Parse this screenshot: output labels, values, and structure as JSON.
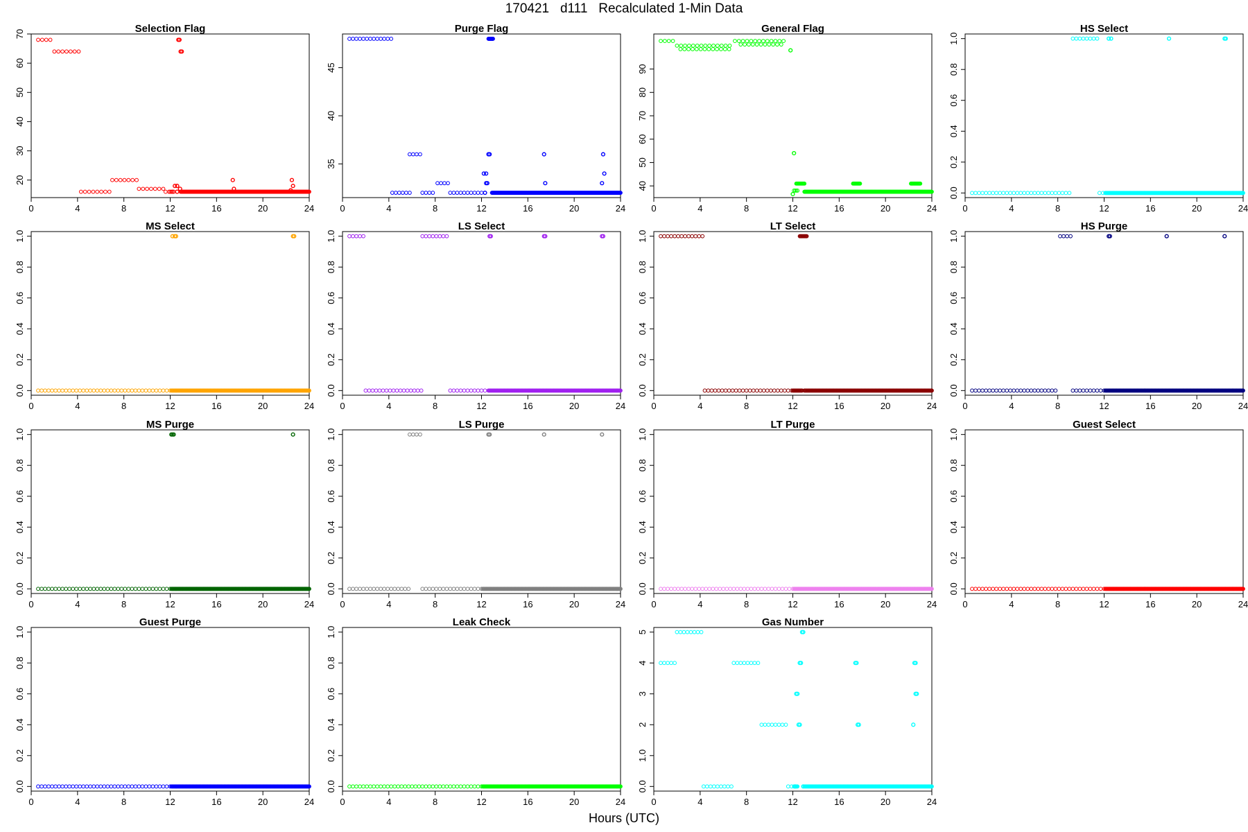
{
  "figure": {
    "title": "170421   d111   Recalculated 1-Min Data",
    "xlabel": "Hours (UTC)"
  },
  "chart_data": [
    {
      "type": "scatter",
      "title": "Selection Flag",
      "color": "#ff0000",
      "xlim": [
        0,
        24
      ],
      "ylim": [
        14,
        70
      ],
      "x_ticks": [
        0,
        4,
        8,
        12,
        16,
        20,
        24
      ],
      "y_ticks": [
        20,
        30,
        40,
        50,
        60,
        70
      ],
      "segments": [
        [
          0.6,
          1.9,
          68,
          0.35
        ],
        [
          2.0,
          4.2,
          64,
          0.35
        ],
        [
          4.3,
          6.8,
          16,
          0.35
        ],
        [
          7.0,
          9.2,
          20,
          0.35
        ],
        [
          9.3,
          11.5,
          17,
          0.35
        ],
        [
          11.6,
          12.2,
          16,
          0.3
        ],
        [
          12.0,
          12.3,
          16,
          0.1
        ],
        [
          12.9,
          24,
          16,
          0.05
        ]
      ],
      "points": [
        [
          12.4,
          18
        ],
        [
          12.6,
          18
        ],
        [
          12.7,
          68
        ],
        [
          12.8,
          68
        ],
        [
          12.85,
          17
        ],
        [
          12.9,
          64
        ],
        [
          13.0,
          64
        ],
        [
          12.6,
          16
        ],
        [
          17.4,
          20
        ],
        [
          17.5,
          17
        ],
        [
          22.5,
          20
        ],
        [
          22.6,
          18
        ],
        [
          22.4,
          16.5
        ]
      ]
    },
    {
      "type": "scatter",
      "title": "Purge Flag",
      "color": "#0000ff",
      "xlim": [
        0,
        24
      ],
      "ylim": [
        31.5,
        48.5
      ],
      "x_ticks": [
        0,
        4,
        8,
        12,
        16,
        20,
        24
      ],
      "y_ticks": [
        35,
        40,
        45
      ],
      "segments": [
        [
          0.6,
          4.3,
          48,
          0.3
        ],
        [
          4.3,
          5.8,
          32,
          0.3
        ],
        [
          5.8,
          6.8,
          36,
          0.3
        ],
        [
          6.9,
          8.0,
          32,
          0.3
        ],
        [
          8.2,
          9.2,
          33,
          0.3
        ],
        [
          9.3,
          12.5,
          32,
          0.3
        ],
        [
          12.9,
          24,
          32,
          0.05
        ],
        [
          12.6,
          13.0,
          48,
          0.03
        ]
      ],
      "points": [
        [
          12.2,
          34
        ],
        [
          12.4,
          34
        ],
        [
          12.4,
          33
        ],
        [
          12.5,
          33
        ],
        [
          12.6,
          36
        ],
        [
          12.7,
          36
        ],
        [
          12.3,
          32
        ],
        [
          17.4,
          36
        ],
        [
          17.5,
          33
        ],
        [
          22.4,
          33
        ],
        [
          22.5,
          36
        ],
        [
          22.6,
          34
        ]
      ]
    },
    {
      "type": "scatter",
      "title": "General Flag",
      "color": "#00ff00",
      "xlim": [
        0,
        24
      ],
      "ylim": [
        35,
        105
      ],
      "x_ticks": [
        0,
        4,
        8,
        12,
        16,
        20,
        24
      ],
      "y_ticks": [
        40,
        50,
        60,
        70,
        80,
        90
      ],
      "segments": [
        [
          0.6,
          1.8,
          102,
          0.35
        ],
        [
          2.0,
          6.8,
          100,
          0.35
        ],
        [
          2.3,
          6.5,
          98.5,
          0.35
        ],
        [
          7.0,
          11.5,
          102,
          0.35
        ],
        [
          7.5,
          11.0,
          100.5,
          0.35
        ],
        [
          12.3,
          13.0,
          41,
          0.05
        ],
        [
          13.0,
          24,
          37.5,
          0.05
        ],
        [
          17.2,
          17.8,
          41,
          0.05
        ],
        [
          22.2,
          23.0,
          41,
          0.05
        ],
        [
          12.1,
          12.4,
          38,
          0.1
        ]
      ],
      "points": [
        [
          11.8,
          98
        ],
        [
          12.1,
          54
        ],
        [
          12.0,
          36.5
        ]
      ]
    },
    {
      "type": "scatter",
      "title": "HS Select",
      "color": "#00ffff",
      "xlim": [
        0,
        24
      ],
      "ylim": [
        -0.03,
        1.03
      ],
      "x_ticks": [
        0,
        4,
        8,
        12,
        16,
        20,
        24
      ],
      "y_ticks": [
        0,
        0.2,
        0.4,
        0.6,
        0.8,
        1.0
      ],
      "segments": [
        [
          0.6,
          9.2,
          0,
          0.3
        ],
        [
          9.3,
          11.5,
          1,
          0.3
        ],
        [
          11.6,
          12.0,
          0,
          0.3
        ],
        [
          12.1,
          24,
          0,
          0.05
        ]
      ],
      "points": [
        [
          12.4,
          1
        ],
        [
          12.6,
          1
        ],
        [
          17.6,
          1
        ],
        [
          22.4,
          1
        ],
        [
          22.5,
          1
        ]
      ]
    },
    {
      "type": "scatter",
      "title": "MS Select",
      "color": "#ffa500",
      "xlim": [
        0,
        24
      ],
      "ylim": [
        -0.03,
        1.03
      ],
      "x_ticks": [
        0,
        4,
        8,
        12,
        16,
        20,
        24
      ],
      "y_ticks": [
        0,
        0.2,
        0.4,
        0.6,
        0.8,
        1.0
      ],
      "segments": [
        [
          0.6,
          12.0,
          0,
          0.3
        ],
        [
          12.1,
          24,
          0,
          0.05
        ]
      ],
      "points": [
        [
          12.2,
          1
        ],
        [
          12.4,
          1
        ],
        [
          12.5,
          1
        ],
        [
          22.6,
          1
        ],
        [
          22.7,
          1
        ]
      ]
    },
    {
      "type": "scatter",
      "title": "LS Select",
      "color": "#a020f0",
      "xlim": [
        0,
        24
      ],
      "ylim": [
        -0.03,
        1.03
      ],
      "x_ticks": [
        0,
        4,
        8,
        12,
        16,
        20,
        24
      ],
      "y_ticks": [
        0,
        0.2,
        0.4,
        0.6,
        0.8,
        1.0
      ],
      "segments": [
        [
          0.6,
          1.8,
          1,
          0.3
        ],
        [
          2.0,
          6.8,
          0,
          0.3
        ],
        [
          6.9,
          9.2,
          1,
          0.3
        ],
        [
          9.3,
          12.5,
          0,
          0.3
        ],
        [
          12.6,
          24,
          0,
          0.05
        ]
      ],
      "points": [
        [
          12.7,
          1
        ],
        [
          12.8,
          1
        ],
        [
          17.4,
          1
        ],
        [
          17.5,
          1
        ],
        [
          22.4,
          1
        ],
        [
          22.5,
          1
        ]
      ]
    },
    {
      "type": "scatter",
      "title": "LT Select",
      "color": "#8b0000",
      "xlim": [
        0,
        24
      ],
      "ylim": [
        -0.03,
        1.03
      ],
      "x_ticks": [
        0,
        4,
        8,
        12,
        16,
        20,
        24
      ],
      "y_ticks": [
        0,
        0.2,
        0.4,
        0.6,
        0.8,
        1.0
      ],
      "segments": [
        [
          0.6,
          4.3,
          1,
          0.3
        ],
        [
          4.4,
          11.9,
          0,
          0.3
        ],
        [
          12.0,
          12.8,
          0,
          0.05
        ],
        [
          13.0,
          24,
          0,
          0.05
        ],
        [
          12.6,
          13.2,
          1,
          0.05
        ]
      ],
      "points": []
    },
    {
      "type": "scatter",
      "title": "HS Purge",
      "color": "#000080",
      "xlim": [
        0,
        24
      ],
      "ylim": [
        -0.03,
        1.03
      ],
      "x_ticks": [
        0,
        4,
        8,
        12,
        16,
        20,
        24
      ],
      "y_ticks": [
        0,
        0.2,
        0.4,
        0.6,
        0.8,
        1.0
      ],
      "segments": [
        [
          0.6,
          8.0,
          0,
          0.3
        ],
        [
          8.2,
          9.2,
          1,
          0.3
        ],
        [
          9.3,
          12.0,
          0,
          0.3
        ],
        [
          12.1,
          24,
          0,
          0.05
        ]
      ],
      "points": [
        [
          12.4,
          1
        ],
        [
          12.5,
          1
        ],
        [
          17.4,
          1
        ],
        [
          22.4,
          1
        ]
      ]
    },
    {
      "type": "scatter",
      "title": "MS Purge",
      "color": "#006400",
      "xlim": [
        0,
        24
      ],
      "ylim": [
        -0.03,
        1.03
      ],
      "x_ticks": [
        0,
        4,
        8,
        12,
        16,
        20,
        24
      ],
      "y_ticks": [
        0,
        0.2,
        0.4,
        0.6,
        0.8,
        1.0
      ],
      "segments": [
        [
          0.6,
          12.0,
          0,
          0.3
        ],
        [
          12.1,
          24,
          0,
          0.05
        ]
      ],
      "points": [
        [
          12.1,
          1
        ],
        [
          12.2,
          1
        ],
        [
          12.3,
          1
        ],
        [
          22.6,
          1
        ]
      ]
    },
    {
      "type": "scatter",
      "title": "LS Purge",
      "color": "#808080",
      "xlim": [
        0,
        24
      ],
      "ylim": [
        -0.03,
        1.03
      ],
      "x_ticks": [
        0,
        4,
        8,
        12,
        16,
        20,
        24
      ],
      "y_ticks": [
        0,
        0.2,
        0.4,
        0.6,
        0.8,
        1.0
      ],
      "segments": [
        [
          0.6,
          5.8,
          0,
          0.3
        ],
        [
          5.8,
          6.8,
          1,
          0.3
        ],
        [
          6.9,
          12.0,
          0,
          0.3
        ],
        [
          12.1,
          24,
          0,
          0.05
        ]
      ],
      "points": [
        [
          12.6,
          1
        ],
        [
          12.7,
          1
        ],
        [
          17.4,
          1
        ],
        [
          22.4,
          1
        ]
      ]
    },
    {
      "type": "scatter",
      "title": "LT Purge",
      "color": "#ee82ee",
      "xlim": [
        0,
        24
      ],
      "ylim": [
        -0.03,
        1.03
      ],
      "x_ticks": [
        0,
        4,
        8,
        12,
        16,
        20,
        24
      ],
      "y_ticks": [
        0,
        0.2,
        0.4,
        0.6,
        0.8,
        1.0
      ],
      "segments": [
        [
          0.6,
          12.0,
          0,
          0.3
        ],
        [
          12.1,
          24,
          0,
          0.05
        ]
      ],
      "points": []
    },
    {
      "type": "scatter",
      "title": "Guest Select",
      "color": "#ff0000",
      "xlim": [
        0,
        24
      ],
      "ylim": [
        -0.03,
        1.03
      ],
      "x_ticks": [
        0,
        4,
        8,
        12,
        16,
        20,
        24
      ],
      "y_ticks": [
        0,
        0.2,
        0.4,
        0.6,
        0.8,
        1.0
      ],
      "segments": [
        [
          0.6,
          12.0,
          0,
          0.3
        ],
        [
          12.1,
          24,
          0,
          0.05
        ]
      ],
      "points": []
    },
    {
      "type": "scatter",
      "title": "Guest Purge",
      "color": "#0000ff",
      "xlim": [
        0,
        24
      ],
      "ylim": [
        -0.03,
        1.03
      ],
      "x_ticks": [
        0,
        4,
        8,
        12,
        16,
        20,
        24
      ],
      "y_ticks": [
        0,
        0.2,
        0.4,
        0.6,
        0.8,
        1.0
      ],
      "segments": [
        [
          0.6,
          12.0,
          0,
          0.3
        ],
        [
          12.1,
          24,
          0,
          0.05
        ]
      ],
      "points": []
    },
    {
      "type": "scatter",
      "title": "Leak Check",
      "color": "#00ff00",
      "xlim": [
        0,
        24
      ],
      "ylim": [
        -0.03,
        1.03
      ],
      "x_ticks": [
        0,
        4,
        8,
        12,
        16,
        20,
        24
      ],
      "y_ticks": [
        0,
        0.2,
        0.4,
        0.6,
        0.8,
        1.0
      ],
      "segments": [
        [
          0.6,
          12.0,
          0,
          0.3
        ],
        [
          12.1,
          24,
          0,
          0.05
        ]
      ],
      "points": []
    },
    {
      "type": "scatter",
      "title": "Gas Number",
      "color": "#00ffff",
      "xlim": [
        0,
        24
      ],
      "ylim": [
        -0.15,
        5.15
      ],
      "x_ticks": [
        0,
        4,
        8,
        12,
        16,
        20,
        24
      ],
      "y_ticks": [
        0,
        1,
        2,
        3,
        4,
        5
      ],
      "segments": [
        [
          0.6,
          1.8,
          4,
          0.3
        ],
        [
          2.0,
          4.3,
          5,
          0.3
        ],
        [
          4.3,
          6.8,
          0,
          0.3
        ],
        [
          6.9,
          9.2,
          4,
          0.3
        ],
        [
          9.3,
          11.5,
          2,
          0.3
        ],
        [
          11.6,
          12.0,
          0,
          0.3
        ],
        [
          12.1,
          12.4,
          0,
          0.05
        ],
        [
          13.0,
          24,
          0,
          0.05
        ]
      ],
      "points": [
        [
          12.3,
          3
        ],
        [
          12.4,
          3
        ],
        [
          12.5,
          2
        ],
        [
          12.6,
          2
        ],
        [
          12.6,
          4
        ],
        [
          12.7,
          4
        ],
        [
          12.8,
          5
        ],
        [
          12.9,
          5
        ],
        [
          17.4,
          4
        ],
        [
          17.5,
          4
        ],
        [
          17.6,
          2
        ],
        [
          17.7,
          2
        ],
        [
          22.4,
          2
        ],
        [
          22.5,
          4
        ],
        [
          22.6,
          4
        ],
        [
          22.6,
          3
        ],
        [
          22.7,
          3
        ],
        [
          12.9,
          0
        ],
        [
          12.2,
          0
        ]
      ]
    }
  ]
}
